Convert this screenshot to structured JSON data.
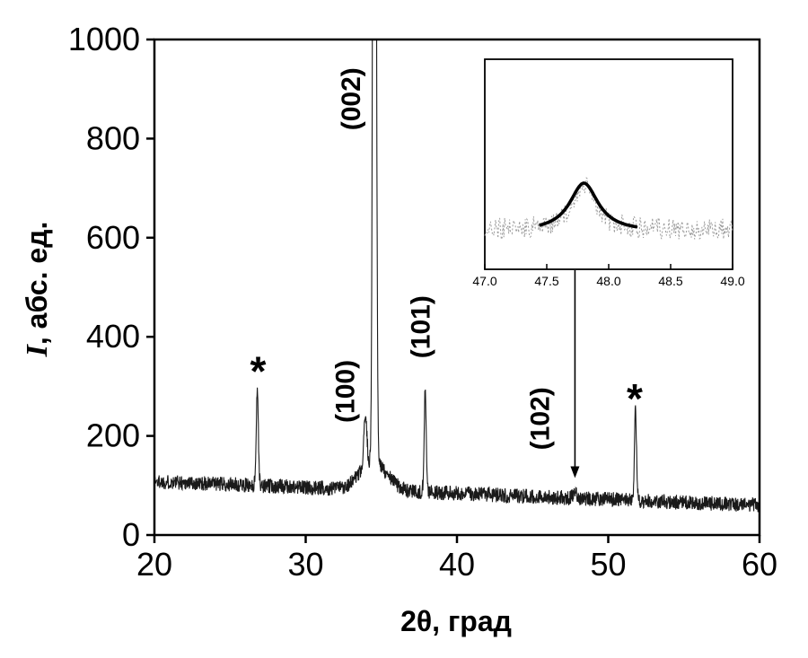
{
  "chart_data": {
    "type": "line",
    "title": "",
    "xlabel": "2θ, град",
    "ylabel": "I, абс. ед.",
    "ylabel_symbol": "I",
    "ylabel_rest": ", абс. ед.",
    "xlim": [
      20,
      60
    ],
    "ylim": [
      0,
      1000
    ],
    "x_ticks": [
      20,
      30,
      40,
      50,
      60
    ],
    "x_tick_labels": [
      "20",
      "30",
      "40",
      "50",
      "60"
    ],
    "y_ticks": [
      0,
      200,
      400,
      600,
      800,
      1000
    ],
    "y_tick_labels": [
      "0",
      "200",
      "400",
      "600",
      "800",
      "1000"
    ],
    "grid": false,
    "line_color": "#1a1a1a",
    "background": "#ffffff",
    "baseline": {
      "start": 108,
      "end": 60,
      "noise": 15
    },
    "broad_hump": {
      "center": 34.5,
      "sigma": 0.9,
      "amplitude": 55
    },
    "peaks": [
      {
        "label": "*",
        "two_theta": 26.8,
        "amplitude": 195,
        "sigma": 0.07
      },
      {
        "label": "(100)",
        "two_theta": 33.95,
        "amplitude": 105,
        "sigma": 0.1
      },
      {
        "label": "(002)",
        "two_theta": 34.55,
        "amplitude": 3000,
        "sigma": 0.09,
        "clipped_at": 1000
      },
      {
        "label": "(101)",
        "two_theta": 37.9,
        "amplitude": 205,
        "sigma": 0.07
      },
      {
        "label": "(102)",
        "two_theta": 47.8,
        "amplitude": 15,
        "sigma": 0.12
      },
      {
        "label": "*",
        "two_theta": 51.8,
        "amplitude": 185,
        "sigma": 0.07
      }
    ],
    "annotations": [
      {
        "text": "*",
        "x": 26.85,
        "y": 345,
        "rotation": 0
      },
      {
        "text": "(100)",
        "x": 32.6,
        "y": 290,
        "rotation": 90
      },
      {
        "text": "(002)",
        "x": 33.0,
        "y": 880,
        "rotation": 90
      },
      {
        "text": "(101)",
        "x": 37.6,
        "y": 420,
        "rotation": 90
      },
      {
        "text": "(102)",
        "x": 45.5,
        "y": 235,
        "rotation": 90
      },
      {
        "text": "*",
        "x": 51.75,
        "y": 290,
        "rotation": 0
      }
    ],
    "arrow": {
      "x": 47.8,
      "tip_y": 115
    },
    "inset": {
      "xlim": [
        47.0,
        49.0
      ],
      "x_ticks": [
        47.0,
        47.5,
        48.0,
        48.5,
        49.0
      ],
      "x_tick_labels": [
        "47.0",
        "47.5",
        "48.0",
        "48.5",
        "49.0"
      ],
      "peak_center": 47.8,
      "fit_range": [
        47.45,
        48.22
      ],
      "raw_trace_color": "#9a9a9a",
      "fit_color": "#000000"
    }
  }
}
